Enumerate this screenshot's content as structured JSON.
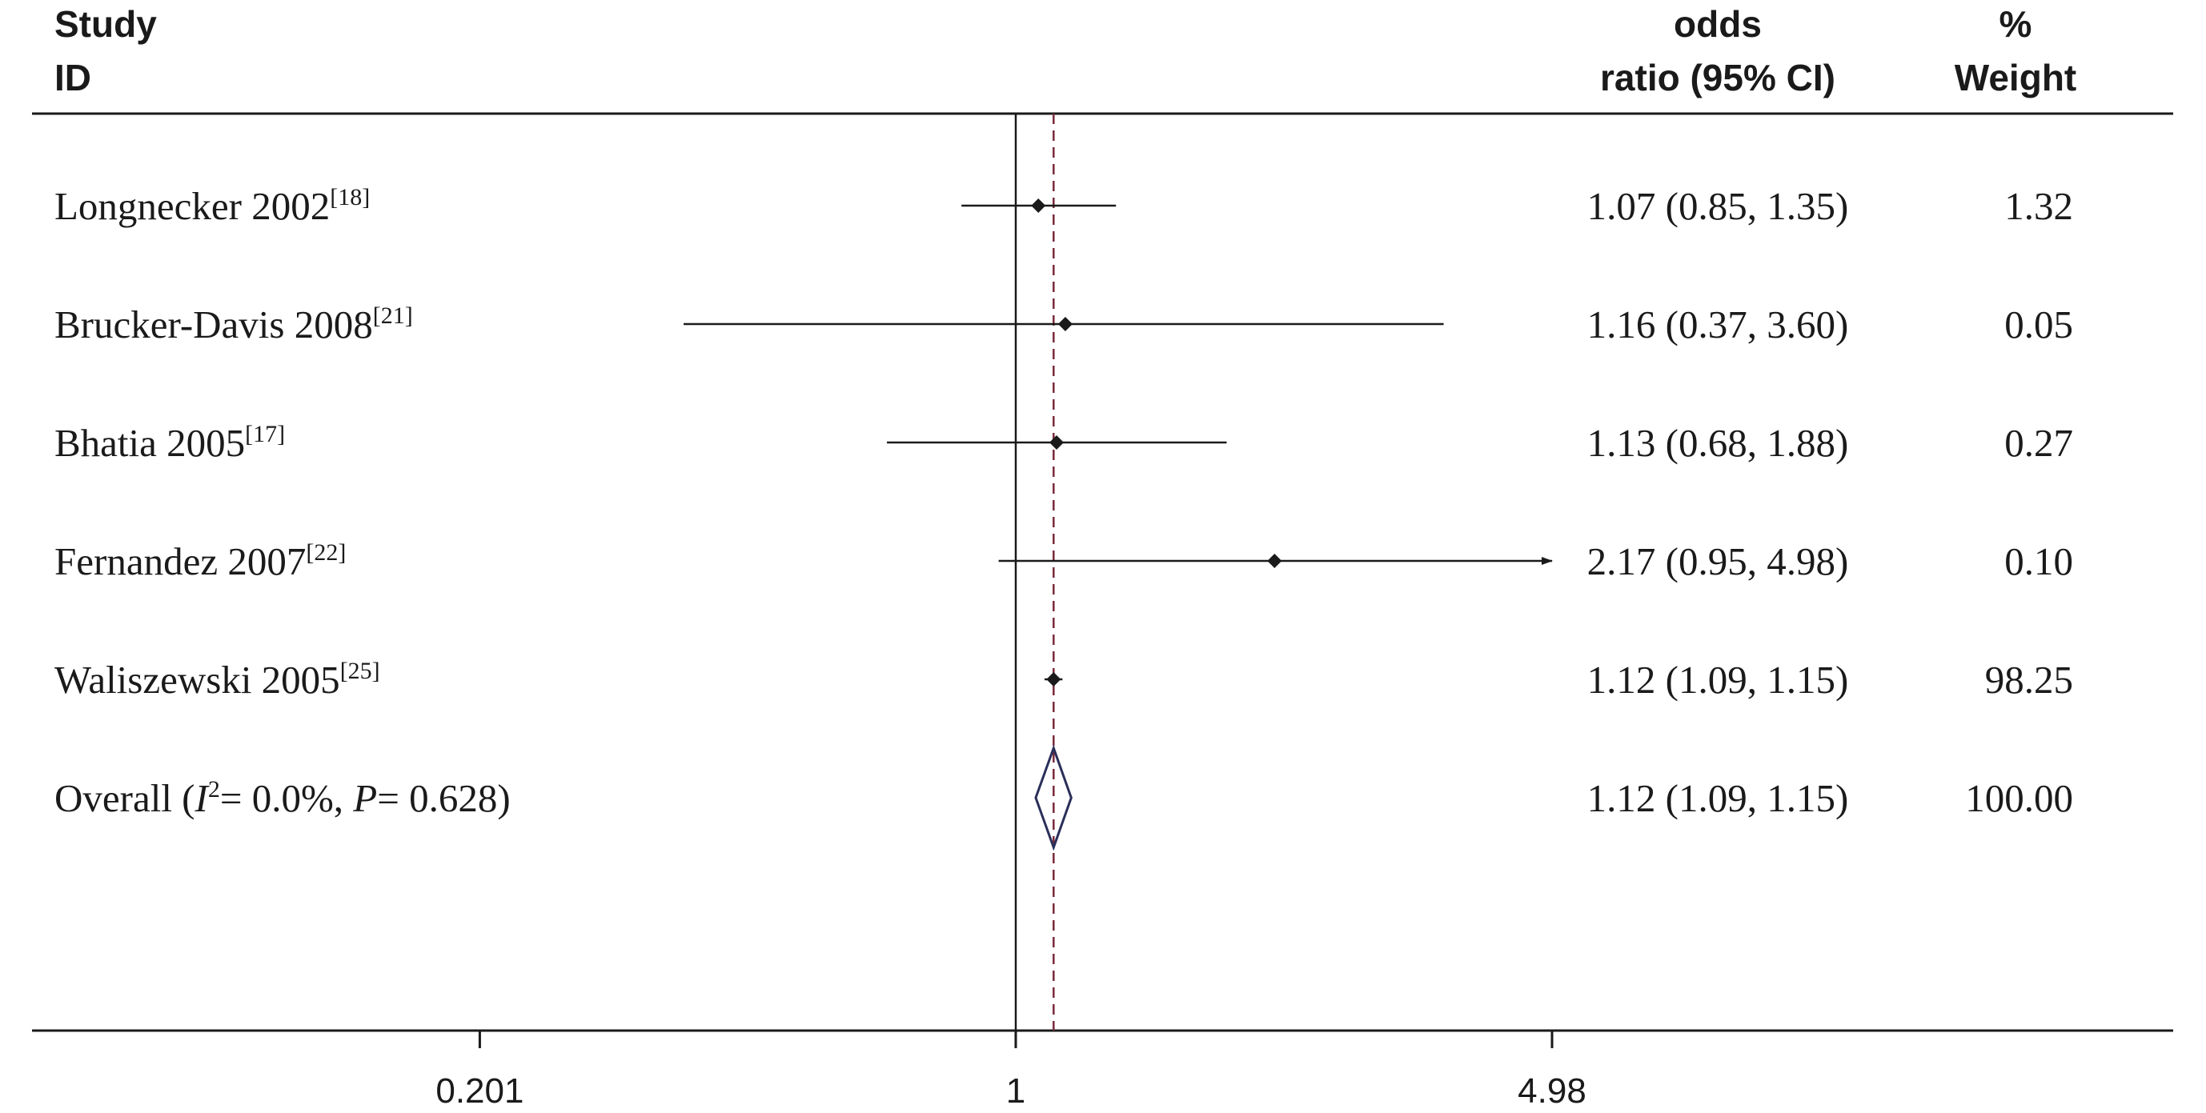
{
  "chart_data": {
    "type": "forest",
    "header": {
      "study_line1": "Study",
      "study_line2": "ID",
      "or_line1": "odds",
      "or_line2": "ratio (95% CI)",
      "weight_line1": "%",
      "weight_line2": "Weight"
    },
    "scale": "log",
    "xlim": [
      0.201,
      4.98
    ],
    "xticks": [
      {
        "value": 0.201,
        "label": "0.201"
      },
      {
        "value": 1,
        "label": "1"
      },
      {
        "value": 4.98,
        "label": "4.98"
      }
    ],
    "null_line": 1,
    "pooled_line": 1.12,
    "studies": [
      {
        "name": "Longnecker 2002",
        "ref": "[18]",
        "or": 1.07,
        "lo": 0.85,
        "hi": 1.35,
        "ci_text": "1.07 (0.85, 1.35)",
        "weight": "1.32"
      },
      {
        "name": "Brucker-Davis 2008",
        "ref": "[21]",
        "or": 1.16,
        "lo": 0.37,
        "hi": 3.6,
        "ci_text": "1.16 (0.37, 3.60)",
        "weight": "0.05"
      },
      {
        "name": "Bhatia 2005",
        "ref": "[17]",
        "or": 1.13,
        "lo": 0.68,
        "hi": 1.88,
        "ci_text": "1.13 (0.68, 1.88)",
        "weight": "0.27"
      },
      {
        "name": "Fernandez 2007",
        "ref": "[22]",
        "or": 2.17,
        "lo": 0.95,
        "hi": 4.98,
        "ci_text": "2.17 (0.95, 4.98)",
        "weight": "0.10",
        "arrow": true
      },
      {
        "name": "Waliszewski 2005",
        "ref": "[25]",
        "or": 1.12,
        "lo": 1.09,
        "hi": 1.15,
        "ci_text": "1.12 (1.09, 1.15)",
        "weight": "98.25"
      }
    ],
    "overall": {
      "label_prefix": "Overall  (",
      "i2_symbol": "I",
      "i2_sup": "2",
      "i2_text": "= 0.0%, ",
      "p_symbol": "P",
      "p_text": "= 0.628)",
      "or": 1.12,
      "lo": 1.09,
      "hi": 1.15,
      "ci_text": "1.12 (1.09, 1.15)",
      "weight": "100.00"
    },
    "colors": {
      "text": "#1a1a1a",
      "pooled_line": "#7a2a3a",
      "diamond": "#2a2f5a"
    }
  }
}
